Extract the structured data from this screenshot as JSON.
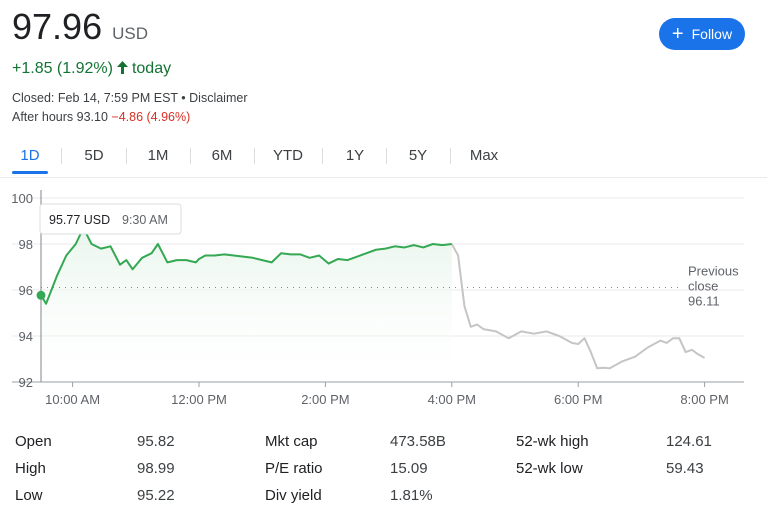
{
  "quote": {
    "price": "97.96",
    "currency": "USD",
    "change": "+1.85 (1.92%)",
    "change_arrow": "🡑",
    "change_period": "today",
    "closed_text": "Closed: Feb 14, 7:59 PM EST • Disclaimer",
    "after_hours_label": "After hours 93.10",
    "after_hours_change": "−4.86 (4.96%)"
  },
  "follow_button": {
    "icon": "plus-icon",
    "label": "Follow"
  },
  "tabs": [
    {
      "label": "1D",
      "active": true
    },
    {
      "label": "5D",
      "active": false
    },
    {
      "label": "1M",
      "active": false
    },
    {
      "label": "6M",
      "active": false
    },
    {
      "label": "YTD",
      "active": false
    },
    {
      "label": "1Y",
      "active": false
    },
    {
      "label": "5Y",
      "active": false
    },
    {
      "label": "Max",
      "active": false
    }
  ],
  "chart_data": {
    "type": "line",
    "ylim": [
      92,
      100
    ],
    "y_ticks": [
      "100",
      "98",
      "96",
      "94",
      "92"
    ],
    "x_ticks": [
      "10:00 AM",
      "12:00 PM",
      "2:00 PM",
      "4:00 PM",
      "6:00 PM",
      "8:00 PM"
    ],
    "x_unit": "hours since 9:30 AM",
    "previous_close": {
      "label_line1": "Previous",
      "label_line2": "close",
      "value": "96.11",
      "y": 96.11
    },
    "tooltip": {
      "price": "95.77 USD",
      "time": "9:30 AM"
    },
    "marker": {
      "x": 0,
      "y": 95.77
    },
    "colors": {
      "regular": "#34a853",
      "after_hours": "#c5c5c5",
      "fill": "#e6f4ea"
    },
    "series": [
      {
        "segment": "regular",
        "x": [
          0,
          0.08,
          0.25,
          0.4,
          0.55,
          0.67,
          0.8,
          0.95,
          1.1,
          1.25,
          1.35,
          1.45,
          1.6,
          1.75,
          1.85,
          2.0,
          2.15,
          2.3,
          2.45,
          2.5,
          2.6,
          2.75,
          2.9,
          3.05,
          3.2,
          3.35,
          3.5,
          3.65,
          3.8,
          3.95,
          4.1,
          4.25,
          4.4,
          4.55,
          4.7,
          4.85,
          5.0,
          5.15,
          5.3,
          5.45,
          5.6,
          5.75,
          5.9,
          6.05,
          6.2,
          6.35,
          6.5
        ],
        "y": [
          95.77,
          95.4,
          96.6,
          97.5,
          98.0,
          98.7,
          98.0,
          97.8,
          97.9,
          97.1,
          97.3,
          96.9,
          97.4,
          97.6,
          98.0,
          97.2,
          97.3,
          97.3,
          97.2,
          97.35,
          97.5,
          97.5,
          97.55,
          97.5,
          97.45,
          97.4,
          97.3,
          97.2,
          97.6,
          97.55,
          97.55,
          97.4,
          97.5,
          97.15,
          97.35,
          97.3,
          97.45,
          97.6,
          97.75,
          97.8,
          97.9,
          97.85,
          97.95,
          97.85,
          98.0,
          97.95,
          98.0
        ]
      },
      {
        "segment": "after_hours",
        "x": [
          6.5,
          6.6,
          6.7,
          6.8,
          6.9,
          7.0,
          7.2,
          7.4,
          7.6,
          7.8,
          8.0,
          8.2,
          8.4,
          8.5,
          8.6,
          8.7,
          8.8,
          8.9,
          9.0,
          9.2,
          9.4,
          9.6,
          9.8,
          9.9,
          10.0,
          10.1,
          10.2,
          10.3,
          10.4,
          10.5
        ],
        "y": [
          98.0,
          97.5,
          95.3,
          94.4,
          94.5,
          94.3,
          94.2,
          93.9,
          94.2,
          94.1,
          94.2,
          94.0,
          93.7,
          93.65,
          93.9,
          93.3,
          92.6,
          92.62,
          92.6,
          92.9,
          93.1,
          93.5,
          93.8,
          93.7,
          93.9,
          93.9,
          93.3,
          93.4,
          93.2,
          93.05
        ]
      }
    ]
  },
  "stats": [
    [
      {
        "label": "Open",
        "value": "95.82"
      },
      {
        "label": "Mkt cap",
        "value": "473.58B"
      },
      {
        "label": "52-wk high",
        "value": "124.61"
      }
    ],
    [
      {
        "label": "High",
        "value": "98.99"
      },
      {
        "label": "P/E ratio",
        "value": "15.09"
      },
      {
        "label": "52-wk low",
        "value": "59.43"
      }
    ],
    [
      {
        "label": "Low",
        "value": "95.22"
      },
      {
        "label": "Div yield",
        "value": "1.81%"
      }
    ]
  ]
}
